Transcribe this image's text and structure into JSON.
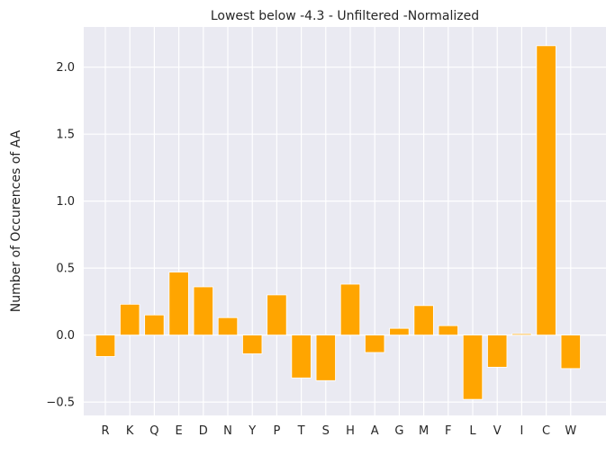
{
  "chart_data": {
    "type": "bar",
    "title": "Lowest below -4.3 - Unfiltered -Normalized",
    "xlabel": "",
    "ylabel": "Number of Occurences of AA",
    "categories": [
      "R",
      "K",
      "Q",
      "E",
      "D",
      "N",
      "Y",
      "P",
      "T",
      "S",
      "H",
      "A",
      "G",
      "M",
      "F",
      "L",
      "V",
      "I",
      "C",
      "W"
    ],
    "values": [
      -0.16,
      0.23,
      0.15,
      0.47,
      0.36,
      0.13,
      -0.14,
      0.3,
      -0.32,
      -0.34,
      0.38,
      -0.13,
      0.05,
      0.22,
      0.07,
      -0.48,
      -0.24,
      0.01,
      2.16,
      -0.25
    ],
    "ylim": [
      -0.6,
      2.3
    ],
    "yticks": [
      -0.5,
      0.0,
      0.5,
      1.0,
      1.5,
      2.0
    ],
    "ytick_labels": [
      "−0.5",
      "0.0",
      "0.5",
      "1.0",
      "1.5",
      "2.0"
    ],
    "grid": true,
    "bar_color": "#ffa500",
    "background_color": "#eaeaf2",
    "grid_color": "#ffffff"
  }
}
